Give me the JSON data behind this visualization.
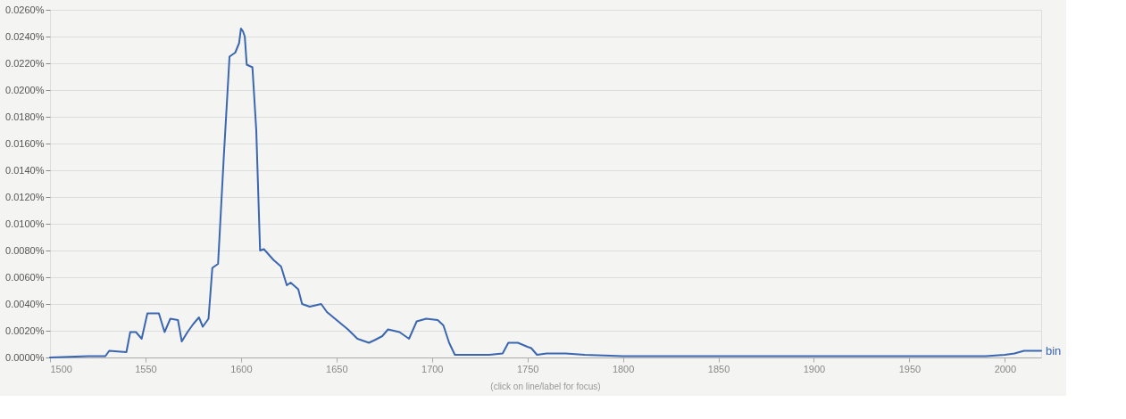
{
  "chart_data": {
    "type": "line",
    "x": [
      1500,
      1520,
      1529,
      1531,
      1540,
      1542,
      1545,
      1548,
      1551,
      1557,
      1560,
      1563,
      1567,
      1569,
      1572,
      1575,
      1578,
      1580,
      1583,
      1585,
      1588,
      1591,
      1594,
      1597,
      1599,
      1600,
      1601,
      1602,
      1603,
      1606,
      1608,
      1610,
      1612,
      1617,
      1621,
      1624,
      1626,
      1630,
      1632,
      1636,
      1642,
      1645,
      1656,
      1661,
      1667,
      1670,
      1674,
      1677,
      1683,
      1688,
      1692,
      1697,
      1703,
      1706,
      1709,
      1712,
      1720,
      1730,
      1737,
      1740,
      1745,
      1750,
      1752,
      1755,
      1760,
      1770,
      1780,
      1800,
      1850,
      1900,
      1950,
      1990,
      2000,
      2005,
      2010,
      2019
    ],
    "series": [
      {
        "name": "bin",
        "color": "#3b66b0",
        "values": [
          0,
          0.0001,
          0.0001,
          0.0005,
          0.0004,
          0.0019,
          0.0019,
          0.0014,
          0.0033,
          0.0033,
          0.0019,
          0.0029,
          0.0028,
          0.0012,
          0.0019,
          0.0025,
          0.003,
          0.0023,
          0.0029,
          0.0067,
          0.007,
          0.015,
          0.0225,
          0.0228,
          0.0235,
          0.0246,
          0.0244,
          0.024,
          0.0219,
          0.0217,
          0.017,
          0.008,
          0.0081,
          0.0073,
          0.0068,
          0.0054,
          0.0056,
          0.0051,
          0.004,
          0.0038,
          0.004,
          0.0034,
          0.0021,
          0.0014,
          0.0011,
          0.0013,
          0.0016,
          0.0021,
          0.0019,
          0.0014,
          0.0027,
          0.0029,
          0.0028,
          0.0024,
          0.0011,
          0.0002,
          0.0002,
          0.0002,
          0.0003,
          0.0011,
          0.0011,
          0.0008,
          0.0007,
          0.0002,
          0.0003,
          0.0003,
          0.0002,
          0.0001,
          0.0001,
          0.0001,
          0.0001,
          0.0001,
          0.0002,
          0.0003,
          0.0005,
          0.0005
        ]
      }
    ],
    "xlim": [
      1500,
      2019
    ],
    "xticks": [
      1500,
      1550,
      1600,
      1650,
      1700,
      1750,
      1800,
      1850,
      1900,
      1950,
      2000
    ],
    "ylim": [
      0,
      0.026
    ],
    "yticks": [
      {
        "value": 0,
        "label": "0.0000%"
      },
      {
        "value": 0.002,
        "label": "0.0020%"
      },
      {
        "value": 0.004,
        "label": "0.0040%"
      },
      {
        "value": 0.006,
        "label": "0.0060%"
      },
      {
        "value": 0.008,
        "label": "0.0080%"
      },
      {
        "value": 0.01,
        "label": "0.0100%"
      },
      {
        "value": 0.012,
        "label": "0.0120%"
      },
      {
        "value": 0.014,
        "label": "0.0140%"
      },
      {
        "value": 0.016,
        "label": "0.0160%"
      },
      {
        "value": 0.018,
        "label": "0.0180%"
      },
      {
        "value": 0.02,
        "label": "0.0200%"
      },
      {
        "value": 0.022,
        "label": "0.0220%"
      },
      {
        "value": 0.024,
        "label": "0.0240%"
      },
      {
        "value": 0.026,
        "label": "0.0260%"
      }
    ],
    "grid": "y",
    "annotations": [
      "(click on line/label for focus)"
    ]
  }
}
